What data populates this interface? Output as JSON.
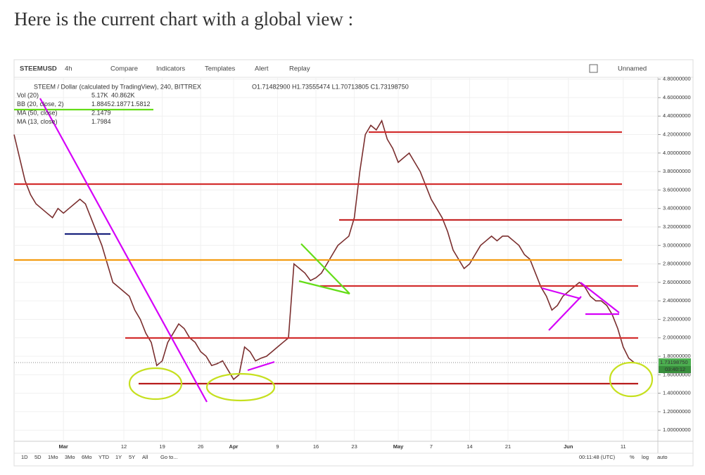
{
  "heading": "Here is the current chart with a global view :",
  "toolbar": {
    "symbol": "STEEMUSD",
    "interval": "4h",
    "buttons": [
      "Compare",
      "Indicators",
      "Templates",
      "Alert",
      "Replay"
    ],
    "layout": "Unnamed"
  },
  "bottom_bar": {
    "ranges": [
      "1D",
      "5D",
      "1Mo",
      "3Mo",
      "6Mo",
      "YTD",
      "1Y",
      "5Y",
      "All"
    ],
    "goto": "Go to...",
    "clock": "00:11:48 (UTC)",
    "scale_buttons": [
      "%",
      "log",
      "auto"
    ]
  },
  "chart_data": {
    "type": "line",
    "legend_title": "STEEM / Dollar (calculated by TradingView), 240, BITTREX",
    "ohlc": "O1.71482900 H1.73555474 L1.70713805 C1.73198750",
    "indicators": [
      {
        "name": "Vol (20)",
        "values": [
          "5.17K",
          "40.862K"
        ],
        "colors": [
          "#26a69a",
          "#2962ff"
        ]
      },
      {
        "name": "BB (20, close, 2)",
        "values": [
          "1.8845",
          "2.1877",
          "1.5812"
        ],
        "colors": [
          "#2962ff",
          "#2962ff",
          "#2962ff"
        ]
      },
      {
        "name": "MA (50, close)",
        "values": [
          "2.1479"
        ],
        "colors": [
          "#e91e63"
        ]
      },
      {
        "name": "MA (13, close)",
        "values": [
          "1.7984"
        ],
        "colors": [
          "#43a047"
        ]
      }
    ],
    "categories": [
      null,
      null,
      null,
      null,
      null,
      null,
      null,
      null,
      null,
      "Mar",
      null,
      null,
      null,
      null,
      null,
      null,
      null,
      null,
      null,
      null,
      "12",
      null,
      null,
      null,
      null,
      null,
      null,
      "19",
      null,
      null,
      null,
      null,
      null,
      null,
      "26",
      null,
      null,
      null,
      null,
      null,
      "Apr",
      null,
      null,
      null,
      null,
      null,
      null,
      null,
      "9",
      null,
      null,
      null,
      null,
      null,
      null,
      "16",
      null,
      null,
      null,
      null,
      null,
      null,
      "23",
      null,
      null,
      null,
      null,
      null,
      null,
      null,
      "May",
      null,
      null,
      null,
      null,
      null,
      "7",
      null,
      null,
      null,
      null,
      null,
      null,
      "14",
      null,
      null,
      null,
      null,
      null,
      null,
      "21",
      null,
      null,
      null,
      null,
      null,
      null,
      null,
      null,
      null,
      null,
      "Jun",
      null,
      null,
      null,
      null,
      null,
      null,
      null,
      null,
      null,
      "11",
      null,
      null
    ],
    "values": [
      4.2,
      3.95,
      3.7,
      3.55,
      3.45,
      3.4,
      3.35,
      3.3,
      3.4,
      3.35,
      3.4,
      3.45,
      3.5,
      3.45,
      3.3,
      3.15,
      3.0,
      2.8,
      2.6,
      2.55,
      2.5,
      2.45,
      2.3,
      2.2,
      2.05,
      1.95,
      1.7,
      1.75,
      1.95,
      2.05,
      2.15,
      2.1,
      2.0,
      1.95,
      1.85,
      1.8,
      1.7,
      1.72,
      1.75,
      1.65,
      1.55,
      1.6,
      1.9,
      1.85,
      1.75,
      1.78,
      1.8,
      1.85,
      1.9,
      1.95,
      2.0,
      2.8,
      2.75,
      2.7,
      2.62,
      2.65,
      2.7,
      2.8,
      2.9,
      3.0,
      3.05,
      3.1,
      3.3,
      3.8,
      4.2,
      4.3,
      4.25,
      4.35,
      4.15,
      4.05,
      3.9,
      3.95,
      4.0,
      3.9,
      3.8,
      3.65,
      3.5,
      3.4,
      3.3,
      3.15,
      2.95,
      2.85,
      2.75,
      2.8,
      2.9,
      3.0,
      3.05,
      3.1,
      3.05,
      3.1,
      3.1,
      3.05,
      3.0,
      2.9,
      2.85,
      2.7,
      2.55,
      2.45,
      2.3,
      2.35,
      2.45,
      2.5,
      2.55,
      2.6,
      2.55,
      2.45,
      2.4,
      2.4,
      2.35,
      2.25,
      2.1,
      1.9,
      1.78,
      1.7319875
    ],
    "color": "#7a2e2e",
    "last_price_label": "1.73198750",
    "countdown": "03:40:12",
    "ylim": [
      0.88,
      4.82
    ],
    "yticks": [
      {
        "value": 1.0,
        "label": "1.00000000"
      },
      {
        "value": 1.2,
        "label": "1.20000000"
      },
      {
        "value": 1.4,
        "label": "1.40000000"
      },
      {
        "value": 1.6,
        "label": "1.60000000"
      },
      {
        "value": 1.8,
        "label": "1.80000000"
      },
      {
        "value": 2.0,
        "label": "2.00000000"
      },
      {
        "value": 2.2,
        "label": "2.20000000"
      },
      {
        "value": 2.4,
        "label": "2.40000000"
      },
      {
        "value": 2.6,
        "label": "2.60000000"
      },
      {
        "value": 2.8,
        "label": "2.80000000"
      },
      {
        "value": 3.0,
        "label": "3.00000000"
      },
      {
        "value": 3.2,
        "label": "3.20000000"
      },
      {
        "value": 3.4,
        "label": "3.40000000"
      },
      {
        "value": 3.6,
        "label": "3.60000000"
      },
      {
        "value": 3.8,
        "label": "3.80000000"
      },
      {
        "value": 4.0,
        "label": "4.00000000"
      },
      {
        "value": 4.2,
        "label": "4.20000000"
      },
      {
        "value": 4.4,
        "label": "4.40000000"
      },
      {
        "value": 4.6,
        "label": "4.60000000"
      },
      {
        "value": 4.8,
        "label": "4.80000000"
      }
    ],
    "grid": true
  }
}
